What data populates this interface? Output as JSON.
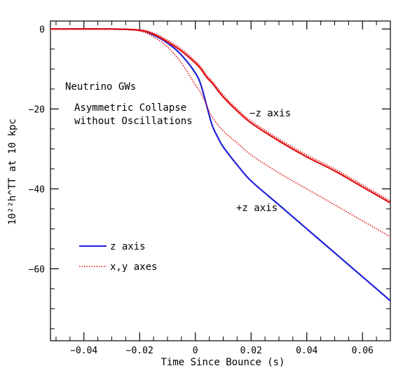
{
  "chart_data": {
    "type": "line",
    "title": "",
    "xlabel": "Time Since Bounce (s)",
    "ylabel": "10²²h^TT at 10 kpc",
    "xlim": [
      -0.052,
      0.07
    ],
    "ylim": [
      -78,
      2
    ],
    "x_ticks": [
      -0.04,
      -0.02,
      0,
      0.02,
      0.04,
      0.06
    ],
    "x_tick_labels": [
      "−0.04",
      "−0.02",
      "0",
      "0.02",
      "0.04",
      "0.06"
    ],
    "y_ticks": [
      0,
      -20,
      -40,
      -60
    ],
    "y_tick_labels": [
      "0",
      "−20",
      "−40",
      "−60"
    ],
    "grid": false,
    "legend_position": "bottom-left",
    "annotations": {
      "line1": "Neutrino GWs",
      "line2": "Asymmetric Collapse",
      "line3": "without Oscillations",
      "minus_z": "−z axis",
      "plus_z": "+z axis"
    },
    "series": [
      {
        "name": "z axis",
        "label_ref": "+z axis",
        "color": "#1f1fd8",
        "style": "solid",
        "x": [
          -0.052,
          -0.03,
          -0.02,
          -0.015,
          -0.01,
          -0.005,
          0,
          0.002,
          0.004,
          0.006,
          0.008,
          0.01,
          0.015,
          0.02,
          0.03,
          0.04,
          0.05,
          0.06,
          0.07
        ],
        "y": [
          0,
          0,
          -0.3,
          -1.5,
          -3.5,
          -6.5,
          -11,
          -14,
          -19,
          -24,
          -27,
          -29.5,
          -34,
          -38,
          -44,
          -50,
          -56,
          -62,
          -68
        ]
      },
      {
        "name": "x,y axes",
        "label_ref": "+z axis",
        "color": "#e01010",
        "style": "dotted",
        "x": [
          -0.052,
          -0.03,
          -0.02,
          -0.015,
          -0.01,
          -0.005,
          0,
          0.002,
          0.004,
          0.006,
          0.01,
          0.015,
          0.02,
          0.03,
          0.04,
          0.05,
          0.06,
          0.07
        ],
        "y": [
          0,
          0,
          -0.5,
          -2,
          -4.5,
          -8.5,
          -14,
          -16,
          -19,
          -22,
          -25.5,
          -28.5,
          -31.5,
          -36,
          -40,
          -44,
          -48,
          -52
        ]
      },
      {
        "name": "z axis",
        "label_ref": "−z axis",
        "color": "#e01010",
        "style": "solid",
        "x": [
          -0.052,
          -0.03,
          -0.02,
          -0.015,
          -0.01,
          -0.005,
          0,
          0.002,
          0.004,
          0.006,
          0.01,
          0.015,
          0.02,
          0.03,
          0.04,
          0.05,
          0.06,
          0.07
        ],
        "y": [
          0,
          0,
          -0.3,
          -1.3,
          -3.2,
          -5.5,
          -8.5,
          -10,
          -12,
          -13.5,
          -17,
          -20.5,
          -23.5,
          -28,
          -32,
          -35.5,
          -39.5,
          -43.5
        ]
      },
      {
        "name": "x,y axes",
        "label_ref": "−z axis",
        "color": "#e01010",
        "style": "dotted",
        "x": [
          -0.052,
          -0.03,
          -0.02,
          -0.015,
          -0.01,
          -0.005,
          0,
          0.002,
          0.004,
          0.006,
          0.01,
          0.015,
          0.02,
          0.03,
          0.04,
          0.05,
          0.06,
          0.07
        ],
        "y": [
          0,
          0,
          -0.2,
          -1,
          -2.8,
          -5,
          -8,
          -9.5,
          -11.5,
          -13,
          -16.5,
          -20,
          -23,
          -27.5,
          -31.5,
          -35,
          -39,
          -43
        ]
      }
    ],
    "legend": [
      {
        "label": "z axis",
        "color": "#1f1fd8",
        "style": "solid"
      },
      {
        "label": "x,y axes",
        "color": "#e01010",
        "style": "dotted"
      }
    ]
  }
}
